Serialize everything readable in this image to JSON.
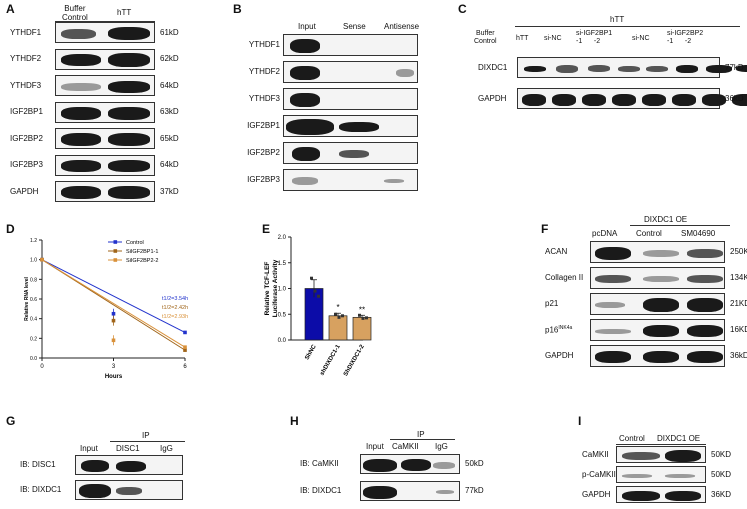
{
  "panels": [
    "A",
    "B",
    "C",
    "D",
    "E",
    "F",
    "G",
    "H",
    "I"
  ],
  "A": {
    "col_headers": [
      "Buffer\nControl",
      "hTT"
    ],
    "rows": [
      {
        "label": "YTHDF1",
        "size": "61kD"
      },
      {
        "label": "YTHDF2",
        "size": "62kD"
      },
      {
        "label": "YTHDF3",
        "size": "64kD"
      },
      {
        "label": "IGF2BP1",
        "size": "63kD"
      },
      {
        "label": "IGF2BP2",
        "size": "65kD"
      },
      {
        "label": "IGF2BP3",
        "size": "64kD"
      },
      {
        "label": "GAPDH",
        "size": "37kD"
      }
    ]
  },
  "B": {
    "col_headers": [
      "Input",
      "Sense",
      "Antisense"
    ],
    "rows": [
      "YTHDF1",
      "YTHDF2",
      "YTHDF3",
      "IGF2BP1",
      "IGF2BP2",
      "IGF2BP3"
    ]
  },
  "C": {
    "group": "hTT",
    "col_headers": [
      "Buffer\nControl",
      "hTT",
      "si-NC",
      "si-IGF2BP1\n-1      -2",
      "si-NC",
      "si-IGF2BP2\n-1      -2"
    ],
    "rows": [
      {
        "label": "DIXDC1",
        "size": "77kD"
      },
      {
        "label": "GAPDH",
        "size": "36kD"
      }
    ]
  },
  "D": {
    "legend": [
      "Control",
      "SiIGF2BP1-1",
      "SiIGF2BP2-2"
    ],
    "annotations": [
      "t1/2=3.54h",
      "t1/2=2.42h",
      "t1/2=2.93h"
    ],
    "ylabel": "Relative RNA level",
    "xlabel": "Hours",
    "x_ticks": [
      "0",
      "3",
      "6"
    ],
    "y_ticks": [
      "0.0",
      "0.2",
      "0.4",
      "0.6",
      "0.8",
      "1.0",
      "1.2"
    ]
  },
  "E": {
    "ylabel": "Relative TCF-LEF\nLuciferase Activity",
    "y_ticks": [
      "0.0",
      "0.5",
      "1.0",
      "1.5",
      "2.0"
    ],
    "categories": [
      "ShNC",
      "shDIXDC1-1",
      "ShDIXDC1-2"
    ],
    "sig": [
      "",
      "*",
      "**"
    ]
  },
  "F": {
    "group": "DIXDC1 OE",
    "col_headers": [
      "pcDNA",
      "Control",
      "SM04690"
    ],
    "rows": [
      {
        "label": "ACAN",
        "size": "250KD"
      },
      {
        "label": "Collagen II",
        "size": "134KD"
      },
      {
        "label": "p21",
        "size": "21KD"
      },
      {
        "label": "p16INK4a",
        "size": "16KD"
      },
      {
        "label": "GAPDH",
        "size": "36kD"
      }
    ]
  },
  "G": {
    "ip": "IP",
    "col_headers": [
      "Input",
      "DISC1",
      "IgG"
    ],
    "rows": [
      {
        "label": "IB: DISC1"
      },
      {
        "label": "IB: DIXDC1"
      }
    ]
  },
  "H": {
    "ip": "IP",
    "col_headers": [
      "Input",
      "CaMKII",
      "IgG"
    ],
    "rows": [
      {
        "label": "IB: CaMKII",
        "size": "50kD"
      },
      {
        "label": "IB: DIXDC1",
        "size": "77kD"
      }
    ]
  },
  "I": {
    "col_headers": [
      "Control",
      "DIXDC1 OE"
    ],
    "rows": [
      {
        "label": "CaMKII",
        "size": "50KD"
      },
      {
        "label": "p-CaMKII",
        "size": "50KD"
      },
      {
        "label": "GAPDH",
        "size": "36KD"
      }
    ]
  },
  "chart_data": [
    {
      "type": "line",
      "panel": "D",
      "xlabel": "Hours",
      "ylabel": "Relative RNA level",
      "xlim": [
        0,
        6
      ],
      "ylim": [
        0,
        1.2
      ],
      "x": [
        0,
        3,
        6
      ],
      "series": [
        {
          "name": "Control",
          "color": "#2233cc",
          "values": [
            1.0,
            0.45,
            0.26
          ]
        },
        {
          "name": "SiIGF2BP1-1",
          "color": "#a0651a",
          "values": [
            1.0,
            0.38,
            0.08
          ]
        },
        {
          "name": "SiIGF2BP2-2",
          "color": "#d9913a",
          "values": [
            1.0,
            0.18,
            0.11
          ]
        }
      ]
    },
    {
      "type": "bar",
      "panel": "E",
      "ylabel": "Relative TCF-LEF Luciferase Activity",
      "ylim": [
        0,
        2.0
      ],
      "categories": [
        "ShNC",
        "shDIXDC1-1",
        "ShDIXDC1-2"
      ],
      "values": [
        1.0,
        0.47,
        0.44
      ],
      "errors": [
        0.17,
        0.05,
        0.04
      ],
      "points": [
        [
          1.2,
          0.95,
          0.85
        ],
        [
          0.5,
          0.44,
          0.47
        ],
        [
          0.48,
          0.42,
          0.43
        ]
      ],
      "colors": [
        "#0c0ca8",
        "#d7a160",
        "#d7a160"
      ]
    }
  ]
}
